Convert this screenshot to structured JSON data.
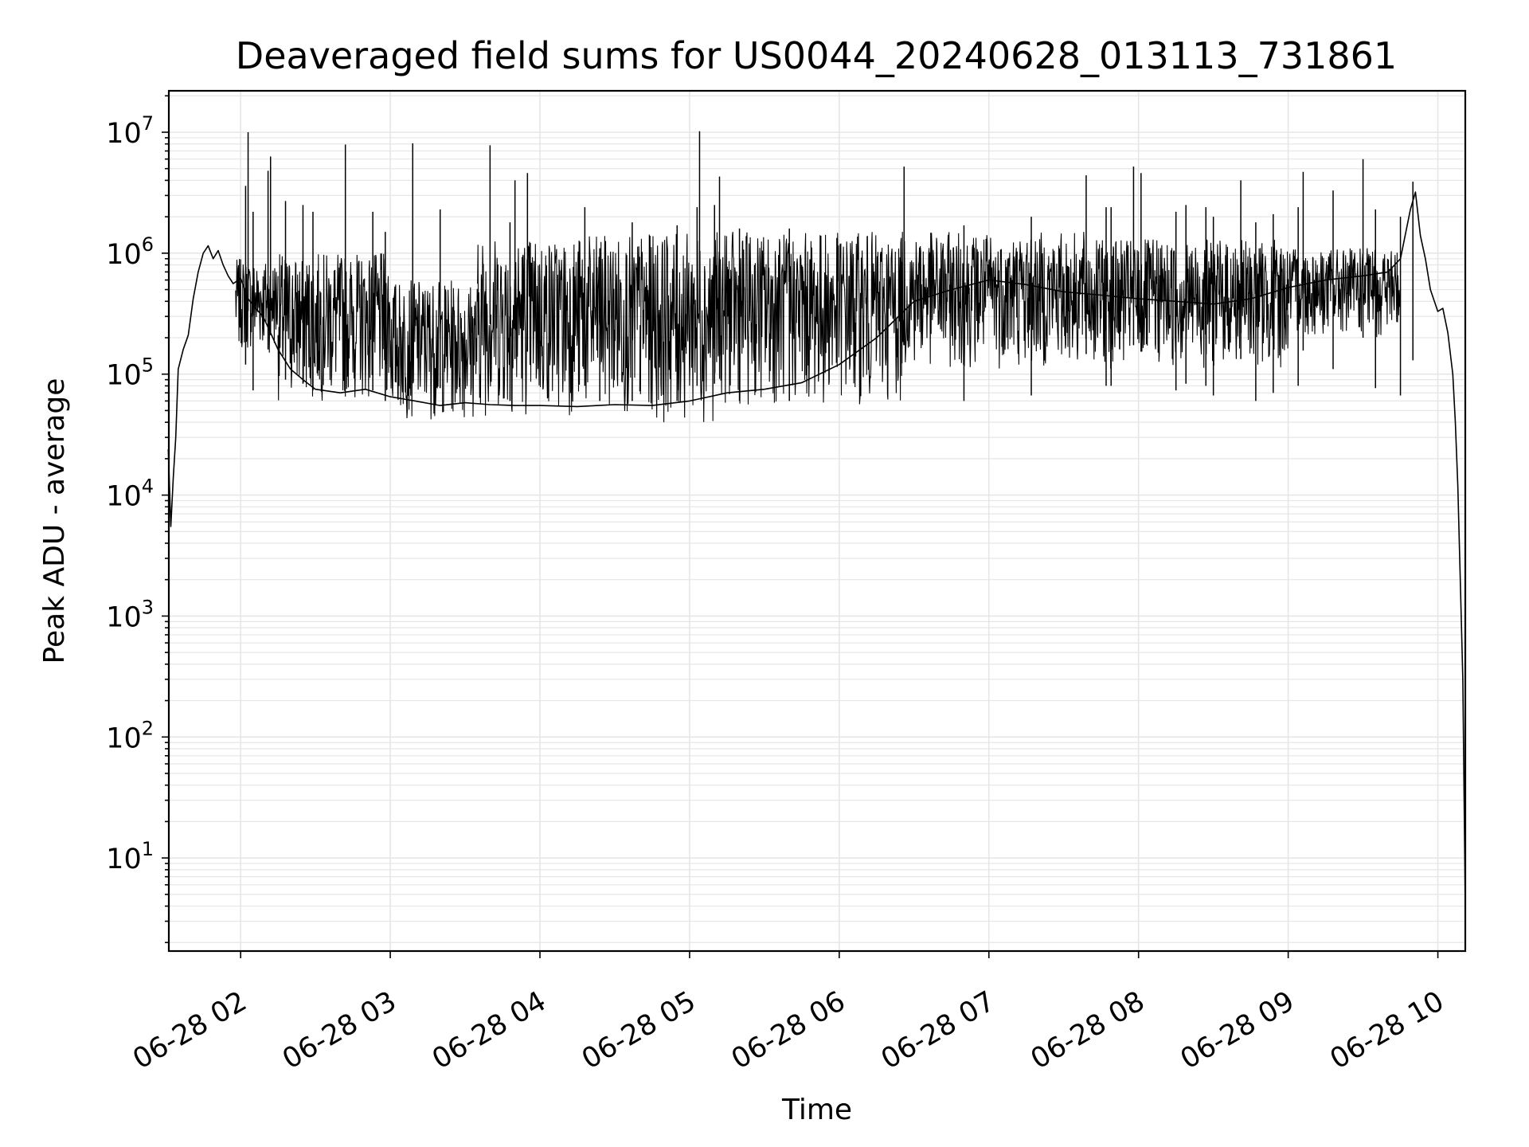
{
  "chart_data": {
    "type": "line",
    "title": "Deaveraged field sums for US0044_20240628_013113_731861",
    "xlabel": "Time",
    "ylabel": "Peak ADU - average",
    "x_tick_labels": [
      "06-28 02",
      "06-28 03",
      "06-28 04",
      "06-28 05",
      "06-28 06",
      "06-28 07",
      "06-28 08",
      "06-28 09",
      "06-28 10"
    ],
    "x_range": [
      "06-28 01:31:13",
      "06-28 10:11:00"
    ],
    "y_scale": "log",
    "ylim": [
      1.7,
      22000000
    ],
    "y_tick_labels": [
      {
        "base": "10",
        "exp": "1"
      },
      {
        "base": "10",
        "exp": "2"
      },
      {
        "base": "10",
        "exp": "3"
      },
      {
        "base": "10",
        "exp": "4"
      },
      {
        "base": "10",
        "exp": "5"
      },
      {
        "base": "10",
        "exp": "6"
      },
      {
        "base": "10",
        "exp": "7"
      }
    ],
    "grid": true,
    "line_color": "#000000",
    "grid_color": "#e6e6e6",
    "series": [
      {
        "points": [
          [
            "01:31",
            24000
          ],
          [
            "01:32",
            5500
          ],
          [
            "01:33",
            14000
          ],
          [
            "01:34",
            30000
          ],
          [
            "01:35",
            110000
          ],
          [
            "01:37",
            160000
          ],
          [
            "01:39",
            210000
          ],
          [
            "01:41",
            420000
          ],
          [
            "01:43",
            700000
          ],
          [
            "01:45",
            1000000
          ],
          [
            "01:47",
            1150000
          ],
          [
            "01:49",
            900000
          ],
          [
            "01:51",
            1050000
          ],
          [
            "01:53",
            800000
          ],
          [
            "01:55",
            650000
          ],
          [
            "01:57",
            560000
          ],
          [
            "02:00",
            620000
          ],
          [
            "02:03",
            420000
          ],
          [
            "02:06",
            350000
          ],
          [
            "02:09",
            300000
          ],
          [
            "02:12",
            220000
          ],
          [
            "02:15",
            160000
          ],
          [
            "02:20",
            110000
          ],
          [
            "02:25",
            90000
          ],
          [
            "02:30",
            75000
          ],
          [
            "02:40",
            70000
          ],
          [
            "02:50",
            75000
          ],
          [
            "03:00",
            65000
          ],
          [
            "03:10",
            60000
          ],
          [
            "03:20",
            55000
          ],
          [
            "03:30",
            58000
          ],
          [
            "03:40",
            56000
          ],
          [
            "03:50",
            55000
          ],
          [
            "04:00",
            55000
          ],
          [
            "04:15",
            54000
          ],
          [
            "04:30",
            56000
          ],
          [
            "04:45",
            55000
          ],
          [
            "05:00",
            60000
          ],
          [
            "05:15",
            70000
          ],
          [
            "05:30",
            75000
          ],
          [
            "05:45",
            85000
          ],
          [
            "06:00",
            120000
          ],
          [
            "06:15",
            200000
          ],
          [
            "06:30",
            400000
          ],
          [
            "06:45",
            500000
          ],
          [
            "07:00",
            600000
          ],
          [
            "07:15",
            550000
          ],
          [
            "07:30",
            480000
          ],
          [
            "07:45",
            450000
          ],
          [
            "08:00",
            420000
          ],
          [
            "08:15",
            400000
          ],
          [
            "08:30",
            380000
          ],
          [
            "08:45",
            420000
          ],
          [
            "09:00",
            520000
          ],
          [
            "09:15",
            600000
          ],
          [
            "09:30",
            650000
          ],
          [
            "09:40",
            700000
          ],
          [
            "09:45",
            900000
          ],
          [
            "09:49",
            2300000
          ],
          [
            "09:51",
            3200000
          ],
          [
            "09:53",
            1400000
          ],
          [
            "09:55",
            900000
          ],
          [
            "09:57",
            500000
          ],
          [
            "10:00",
            330000
          ],
          [
            "10:02",
            350000
          ],
          [
            "10:04",
            220000
          ],
          [
            "10:06",
            100000
          ],
          [
            "10:07",
            40000
          ],
          [
            "10:08",
            12000
          ],
          [
            "10:09",
            2000
          ],
          [
            "10:10",
            300
          ],
          [
            "10:11",
            3.8
          ]
        ],
        "band": [
          {
            "from": "01:58",
            "to": "02:15",
            "low": 150000,
            "high": 900000
          },
          {
            "from": "02:15",
            "to": "03:00",
            "low": 60000,
            "high": 1000000
          },
          {
            "from": "03:00",
            "to": "03:35",
            "low": 42000,
            "high": 600000
          },
          {
            "from": "03:35",
            "to": "04:40",
            "low": 45000,
            "high": 1400000
          },
          {
            "from": "04:40",
            "to": "05:10",
            "low": 40000,
            "high": 1450000
          },
          {
            "from": "05:10",
            "to": "06:25",
            "low": 55000,
            "high": 1500000
          },
          {
            "from": "06:25",
            "to": "07:40",
            "low": 110000,
            "high": 1500000
          },
          {
            "from": "07:40",
            "to": "09:00",
            "low": 110000,
            "high": 1300000
          },
          {
            "from": "09:00",
            "to": "09:45",
            "low": 200000,
            "high": 1100000
          }
        ],
        "spikes": [
          [
            "02:02",
            3600000
          ],
          [
            "02:03",
            10000000
          ],
          [
            "02:05",
            2200000
          ],
          [
            "02:11",
            4800000
          ],
          [
            "02:12",
            6300000
          ],
          [
            "02:18",
            2700000
          ],
          [
            "02:25",
            2500000
          ],
          [
            "02:29",
            2200000
          ],
          [
            "02:42",
            7900000
          ],
          [
            "02:53",
            2200000
          ],
          [
            "02:58",
            1500000
          ],
          [
            "03:09",
            8100000
          ],
          [
            "03:20",
            2300000
          ],
          [
            "03:40",
            7800000
          ],
          [
            "03:48",
            1800000
          ],
          [
            "03:50",
            4000000
          ],
          [
            "03:55",
            4600000
          ],
          [
            "04:18",
            2400000
          ],
          [
            "04:24",
            1100000
          ],
          [
            "04:37",
            1800000
          ],
          [
            "04:55",
            1700000
          ],
          [
            "05:03",
            2400000
          ],
          [
            "05:04",
            10200000
          ],
          [
            "05:10",
            2500000
          ],
          [
            "05:12",
            4300000
          ],
          [
            "05:20",
            1600000
          ],
          [
            "05:40",
            1600000
          ],
          [
            "06:26",
            5200000
          ],
          [
            "06:50",
            1700000
          ],
          [
            "07:17",
            2000000
          ],
          [
            "07:39",
            4400000
          ],
          [
            "07:47",
            2400000
          ],
          [
            "07:49",
            2400000
          ],
          [
            "07:58",
            5200000
          ],
          [
            "08:01",
            4600000
          ],
          [
            "08:15",
            2200000
          ],
          [
            "08:19",
            2500000
          ],
          [
            "08:27",
            2400000
          ],
          [
            "08:30",
            2000000
          ],
          [
            "08:41",
            4000000
          ],
          [
            "08:47",
            1800000
          ],
          [
            "08:54",
            2100000
          ],
          [
            "09:04",
            2400000
          ],
          [
            "09:06",
            4700000
          ],
          [
            "09:18",
            3300000
          ],
          [
            "09:30",
            6000000
          ],
          [
            "09:35",
            2300000
          ],
          [
            "09:45",
            2000000
          ],
          [
            "09:50",
            3900000
          ]
        ]
      }
    ]
  }
}
